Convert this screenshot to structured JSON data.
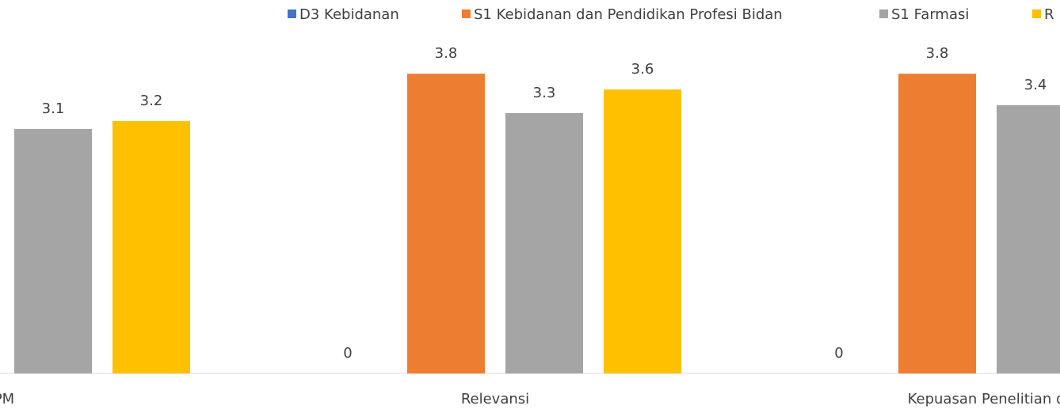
{
  "chart_data": {
    "type": "bar",
    "categories": [
      "PM",
      "Relevansi",
      "Kepuasan Penelitian d"
    ],
    "series": [
      {
        "name": "D3 Kebidanan",
        "color": "#4472c4",
        "values": [
          null,
          0,
          0
        ]
      },
      {
        "name": "S1 Kebidanan dan Pendidikan Profesi Bidan",
        "color": "#ed7d31",
        "values": [
          null,
          3.8,
          3.8
        ]
      },
      {
        "name": "S1 Farmasi",
        "color": "#a5a5a5",
        "values": [
          3.1,
          3.3,
          3.4
        ]
      },
      {
        "name": "R",
        "color": "#ffc000",
        "values": [
          3.2,
          3.6,
          null
        ]
      }
    ]
  }
}
